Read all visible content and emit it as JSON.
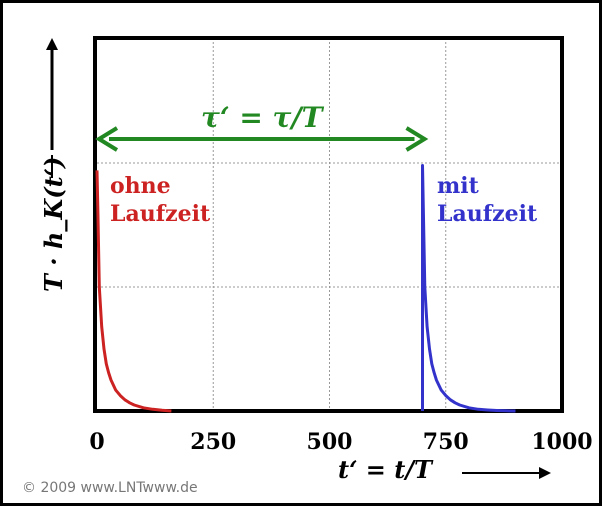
{
  "chart_data": {
    "type": "line",
    "xlim": [
      0,
      1000
    ],
    "ylim": [
      0,
      1
    ],
    "xticks": [
      "0",
      "250",
      "500",
      "750",
      "1000"
    ],
    "ylabel": "T · h_K(t‘)",
    "xlabel": "t‘ = t/T",
    "grid": true,
    "series": [
      {
        "name": "ohne Laufzeit",
        "color": "#cc2222",
        "x": [
          0,
          2,
          5,
          10,
          15,
          20,
          25,
          30,
          40,
          50,
          60,
          70,
          80,
          100,
          120,
          140,
          160
        ],
        "y": [
          0.97,
          0.8,
          0.5,
          0.34,
          0.25,
          0.19,
          0.155,
          0.125,
          0.085,
          0.062,
          0.045,
          0.033,
          0.024,
          0.013,
          0.007,
          0.003,
          0.0
        ]
      },
      {
        "name": "mit Laufzeit",
        "color": "#3333cc",
        "x": [
          700,
          700,
          702,
          705,
          710,
          715,
          720,
          725,
          730,
          740,
          750,
          760,
          770,
          780,
          800,
          820,
          840,
          860,
          880,
          900
        ],
        "y": [
          0.0,
          0.99,
          0.8,
          0.5,
          0.34,
          0.25,
          0.19,
          0.155,
          0.125,
          0.085,
          0.062,
          0.045,
          0.033,
          0.024,
          0.013,
          0.007,
          0.004,
          0.002,
          0.001,
          0.0
        ]
      }
    ],
    "annotations": {
      "tau": "τ‘ = τ/T",
      "tau_start": 0,
      "tau_end": 700,
      "tau_color": "#228822",
      "red_label_1": "ohne",
      "red_label_2": "Laufzeit",
      "blue_label_1": "mit",
      "blue_label_2": "Laufzeit"
    }
  },
  "copyright": "© 2009 www.LNTwww.de"
}
